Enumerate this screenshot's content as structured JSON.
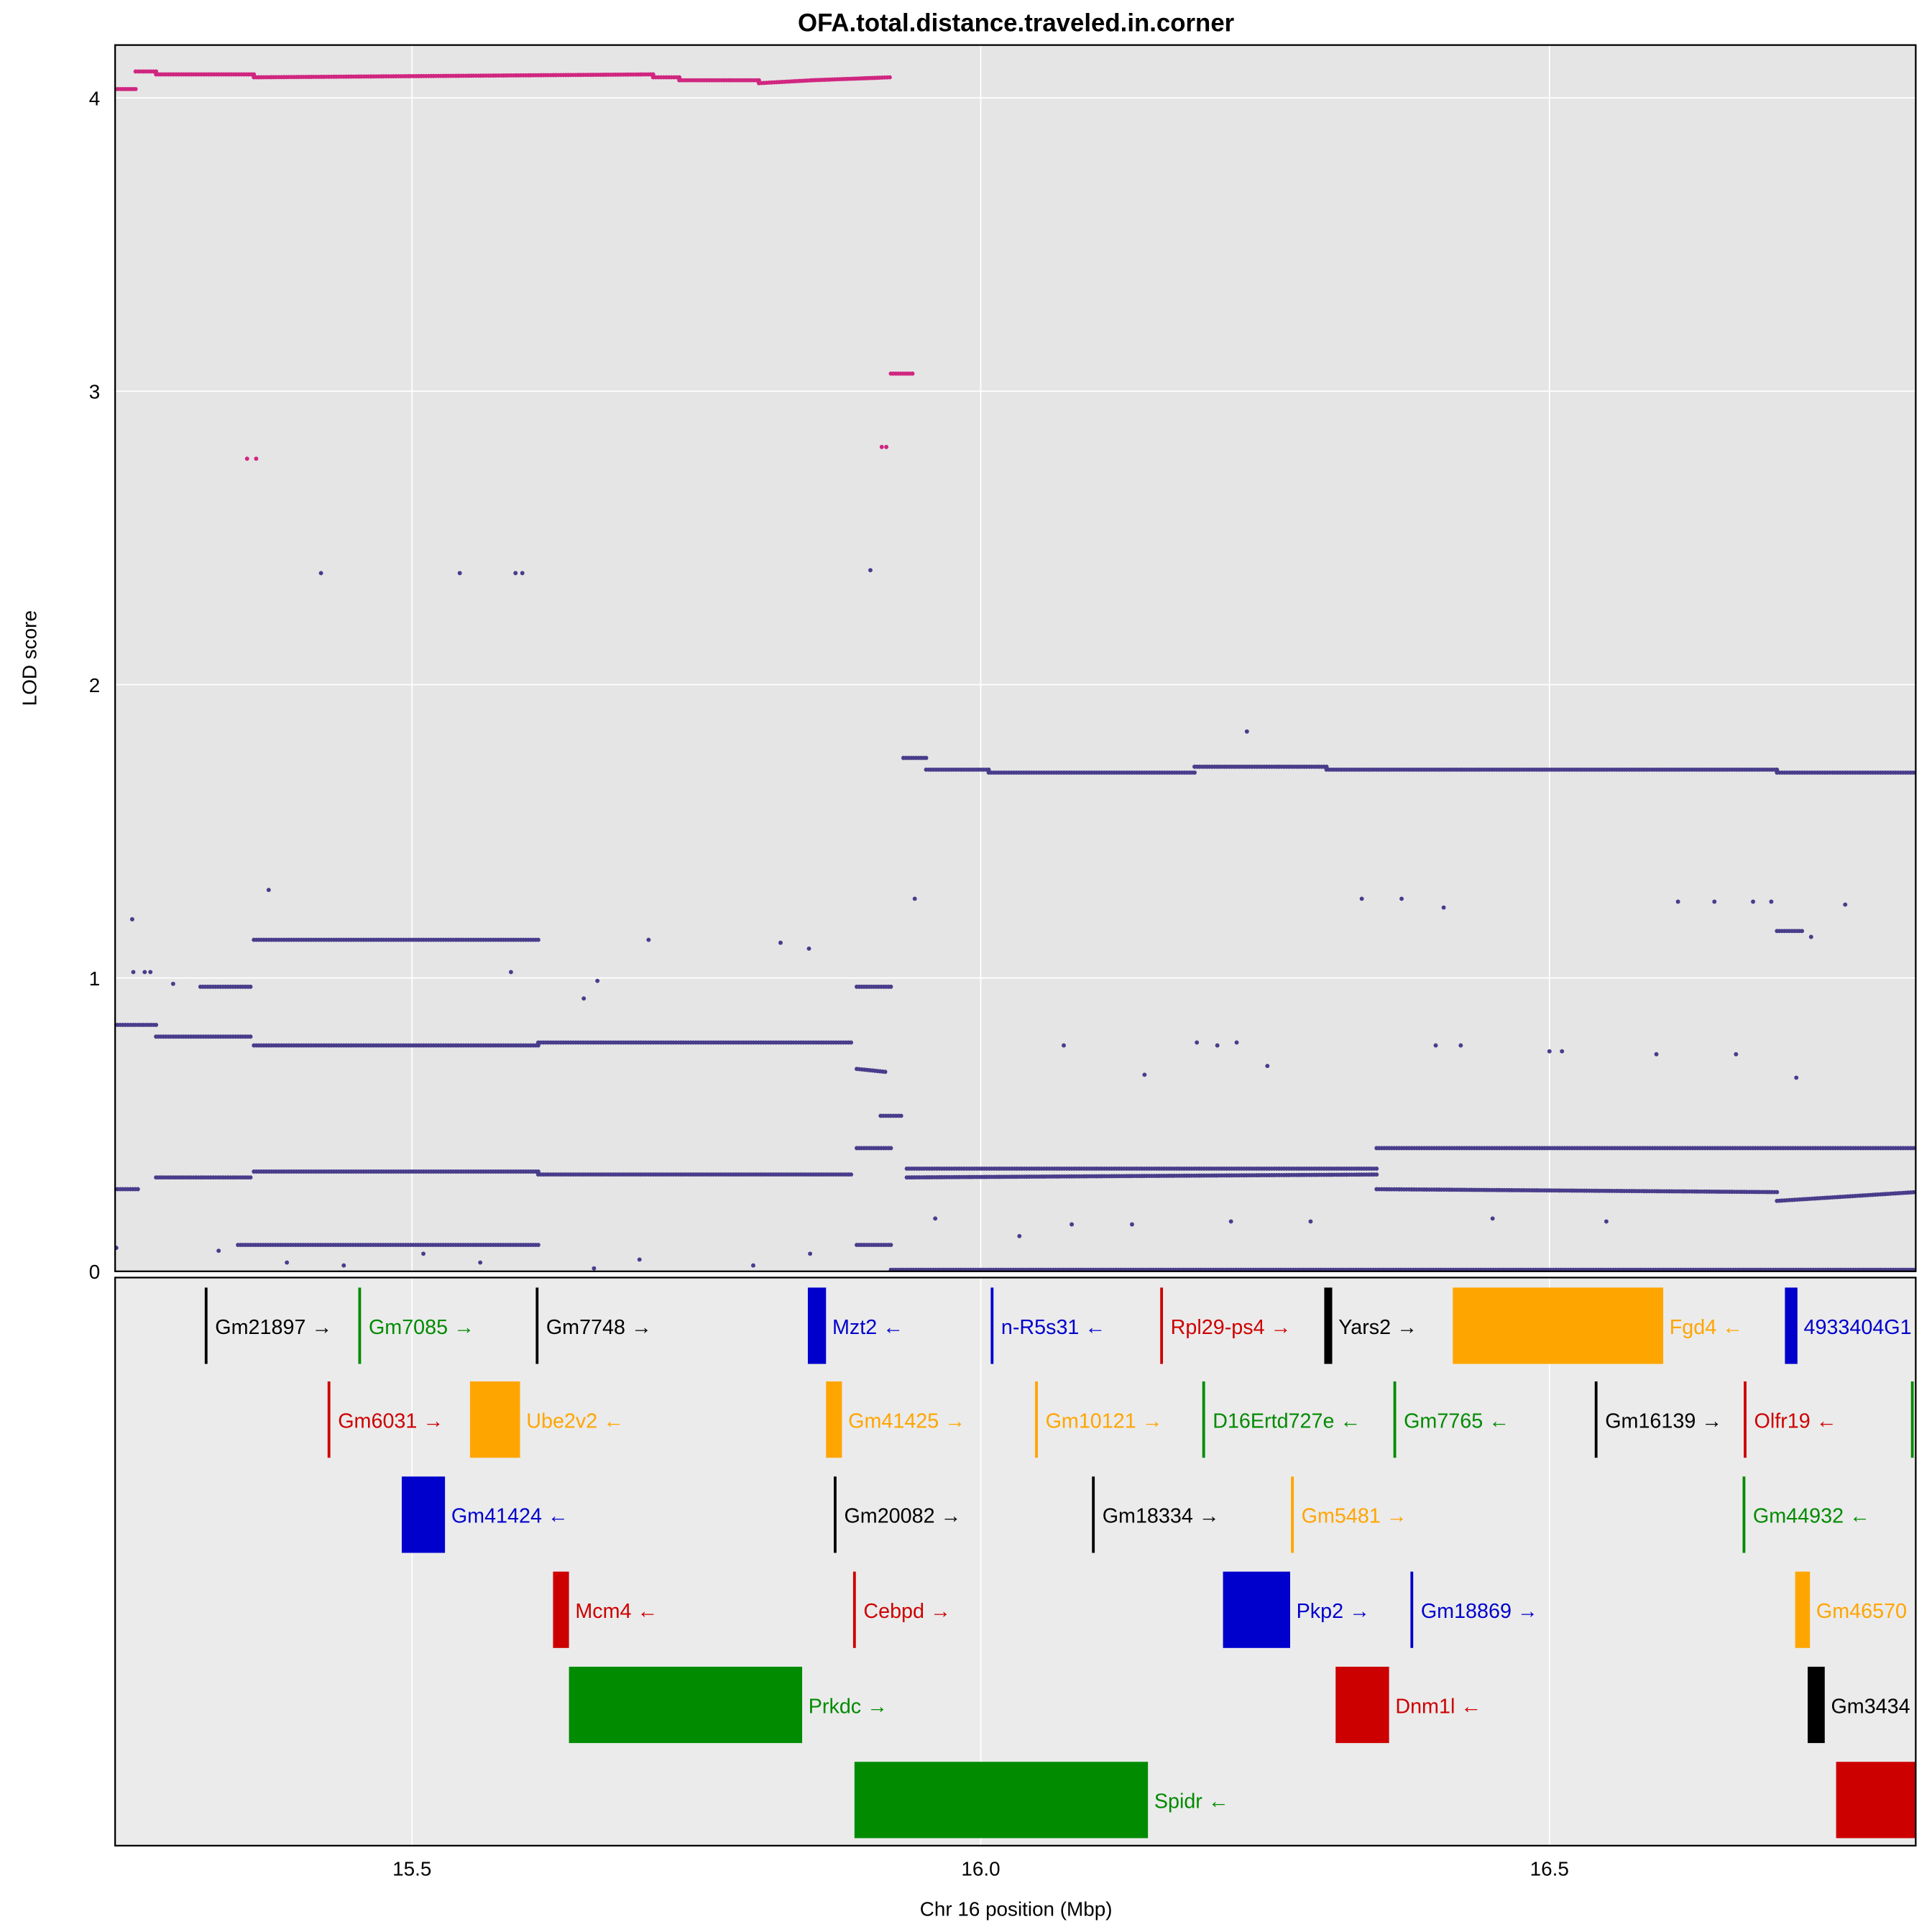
{
  "chart_data": {
    "type": "scatter",
    "title": "OFA.total.distance.traveled.in.corner",
    "xlabel": "Chr 16 position (Mbp)",
    "ylabel": "LOD score",
    "xlim": [
      15.239,
      16.822
    ],
    "ylim": [
      0,
      4.18
    ],
    "grid": true,
    "x_ticks": [
      {
        "value": 15.5,
        "label": "15.5"
      },
      {
        "value": 16.0,
        "label": "16.0"
      },
      {
        "value": 16.5,
        "label": "16.5"
      }
    ],
    "y_ticks": [
      {
        "value": 0,
        "label": "0"
      },
      {
        "value": 1,
        "label": "1"
      },
      {
        "value": 2,
        "label": "2"
      },
      {
        "value": 3,
        "label": "3"
      },
      {
        "value": 4,
        "label": "4"
      }
    ],
    "series": [
      {
        "name": "top-snps",
        "color": "#D02680",
        "segments": [
          [
            15.239,
            15.257,
            4.03,
            4.03
          ],
          [
            15.257,
            15.275,
            4.09,
            4.09
          ],
          [
            15.275,
            15.361,
            4.08,
            4.08
          ],
          [
            15.361,
            15.712,
            4.07,
            4.08
          ],
          [
            15.712,
            15.735,
            4.07,
            4.07
          ],
          [
            15.735,
            15.805,
            4.06,
            4.06
          ],
          [
            15.805,
            15.852,
            4.05,
            4.06
          ],
          [
            15.852,
            15.92,
            4.06,
            4.07
          ],
          [
            15.921,
            15.94,
            3.06,
            3.06
          ]
        ],
        "points": [
          [
            15.355,
            2.77
          ],
          [
            15.363,
            2.77
          ],
          [
            15.913,
            2.81
          ],
          [
            15.917,
            2.81
          ]
        ]
      },
      {
        "name": "other-snps",
        "color": "#483D8B",
        "segments": [
          [
            15.239,
            15.275,
            0.84,
            0.84
          ],
          [
            15.275,
            15.358,
            0.8,
            0.8
          ],
          [
            15.361,
            15.611,
            0.77,
            0.77
          ],
          [
            15.611,
            15.886,
            0.78,
            0.78
          ],
          [
            15.314,
            15.358,
            0.97,
            0.97
          ],
          [
            15.361,
            15.611,
            1.13,
            1.13
          ],
          [
            15.891,
            15.921,
            0.97,
            0.97
          ],
          [
            15.891,
            15.916,
            0.69,
            0.68
          ],
          [
            15.912,
            15.93,
            0.53,
            0.53
          ],
          [
            15.239,
            15.259,
            0.28,
            0.28
          ],
          [
            15.275,
            15.358,
            0.32,
            0.32
          ],
          [
            15.361,
            15.611,
            0.34,
            0.34
          ],
          [
            15.611,
            15.886,
            0.33,
            0.33
          ],
          [
            15.891,
            15.921,
            0.42,
            0.42
          ],
          [
            15.935,
            16.348,
            0.35,
            0.35
          ],
          [
            15.935,
            16.348,
            0.32,
            0.33
          ],
          [
            16.348,
            16.822,
            0.42,
            0.42
          ],
          [
            16.348,
            16.7,
            0.28,
            0.27
          ],
          [
            16.7,
            16.822,
            0.24,
            0.27
          ],
          [
            15.347,
            15.611,
            0.09,
            0.09
          ],
          [
            15.891,
            15.921,
            0.09,
            0.09
          ],
          [
            15.932,
            15.952,
            1.75,
            1.75
          ],
          [
            15.952,
            16.007,
            1.71,
            1.71
          ],
          [
            16.007,
            16.188,
            1.7,
            1.7
          ],
          [
            16.188,
            16.304,
            1.72,
            1.72
          ],
          [
            16.304,
            16.7,
            1.71,
            1.71
          ],
          [
            16.7,
            16.822,
            1.7,
            1.7
          ],
          [
            15.921,
            16.822,
            0.005,
            0.005
          ],
          [
            16.7,
            16.722,
            1.16,
            1.16
          ]
        ],
        "points": [
          [
            15.254,
            1.2
          ],
          [
            15.255,
            1.02
          ],
          [
            15.265,
            1.02
          ],
          [
            15.27,
            1.02
          ],
          [
            15.29,
            0.98
          ],
          [
            15.374,
            1.3
          ],
          [
            15.42,
            2.38
          ],
          [
            15.542,
            2.38
          ],
          [
            15.591,
            2.38
          ],
          [
            15.597,
            2.38
          ],
          [
            15.587,
            1.02
          ],
          [
            15.651,
            0.93
          ],
          [
            15.663,
            0.99
          ],
          [
            15.708,
            1.13
          ],
          [
            15.824,
            1.12
          ],
          [
            15.849,
            1.1
          ],
          [
            15.903,
            2.39
          ],
          [
            15.942,
            1.27
          ],
          [
            16.234,
            1.84
          ],
          [
            16.073,
            0.77
          ],
          [
            16.208,
            0.77
          ],
          [
            16.19,
            0.78
          ],
          [
            16.225,
            0.78
          ],
          [
            16.144,
            0.67
          ],
          [
            16.252,
            0.7
          ],
          [
            16.335,
            1.27
          ],
          [
            16.37,
            1.27
          ],
          [
            16.407,
            1.24
          ],
          [
            16.4,
            0.77
          ],
          [
            16.422,
            0.77
          ],
          [
            16.5,
            0.75
          ],
          [
            16.511,
            0.75
          ],
          [
            16.594,
            0.74
          ],
          [
            16.613,
            1.26
          ],
          [
            16.645,
            1.26
          ],
          [
            16.664,
            0.74
          ],
          [
            16.679,
            1.26
          ],
          [
            16.695,
            1.26
          ],
          [
            16.717,
            0.66
          ],
          [
            16.76,
            1.25
          ],
          [
            16.73,
            1.14
          ],
          [
            16.08,
            0.16
          ],
          [
            16.133,
            0.16
          ],
          [
            16.034,
            0.12
          ],
          [
            16.22,
            0.17
          ],
          [
            16.29,
            0.17
          ],
          [
            16.45,
            0.18
          ],
          [
            16.55,
            0.17
          ],
          [
            15.24,
            0.08
          ],
          [
            15.33,
            0.07
          ],
          [
            15.39,
            0.03
          ],
          [
            15.44,
            0.02
          ],
          [
            15.51,
            0.06
          ],
          [
            15.56,
            0.03
          ],
          [
            15.66,
            0.01
          ],
          [
            15.7,
            0.04
          ],
          [
            15.8,
            0.02
          ],
          [
            15.85,
            0.06
          ],
          [
            15.96,
            0.18
          ]
        ]
      }
    ],
    "genes": [
      {
        "row": 1,
        "start": 15.319,
        "end": 15.319,
        "color": "#000000",
        "label": "Gm21897 →"
      },
      {
        "row": 1,
        "start": 15.454,
        "end": 15.454,
        "color": "#008B00",
        "label": "Gm7085 →"
      },
      {
        "row": 1,
        "start": 15.61,
        "end": 15.61,
        "color": "#000000",
        "label": "Gm7748 →"
      },
      {
        "row": 1,
        "start": 15.848,
        "end": 15.864,
        "color": "#0000CD",
        "label": "Mzt2 ←"
      },
      {
        "row": 1,
        "start": 16.01,
        "end": 16.01,
        "color": "#0000CD",
        "label": "n-R5s31 ←"
      },
      {
        "row": 1,
        "start": 16.159,
        "end": 16.159,
        "color": "#CD0000",
        "label": "Rpl29-ps4 →"
      },
      {
        "row": 1,
        "start": 16.302,
        "end": 16.309,
        "color": "#000000",
        "label": "Yars2 →"
      },
      {
        "row": 1,
        "start": 16.415,
        "end": 16.6,
        "color": "#FFA500",
        "label": "Fgd4 ←"
      },
      {
        "row": 1,
        "start": 16.707,
        "end": 16.718,
        "color": "#0000CD",
        "label": "4933404G1"
      },
      {
        "row": 2,
        "start": 15.427,
        "end": 15.427,
        "color": "#CD0000",
        "label": "Gm6031 →"
      },
      {
        "row": 2,
        "start": 15.551,
        "end": 15.595,
        "color": "#FFA500",
        "label": "Ube2v2 ←"
      },
      {
        "row": 2,
        "start": 15.864,
        "end": 15.878,
        "color": "#FFA500",
        "label": "Gm41425 →"
      },
      {
        "row": 2,
        "start": 16.049,
        "end": 16.049,
        "color": "#FFA500",
        "label": "Gm10121 →"
      },
      {
        "row": 2,
        "start": 16.196,
        "end": 16.196,
        "color": "#008B00",
        "label": "D16Ertd727e ←"
      },
      {
        "row": 2,
        "start": 16.364,
        "end": 16.364,
        "color": "#008B00",
        "label": "Gm7765 ←"
      },
      {
        "row": 2,
        "start": 16.541,
        "end": 16.541,
        "color": "#000000",
        "label": "Gm16139 →"
      },
      {
        "row": 2,
        "start": 16.672,
        "end": 16.672,
        "color": "#CD0000",
        "label": "Olfr19 ←"
      },
      {
        "row": 2,
        "start": 16.819,
        "end": 16.819,
        "color": "#008B00",
        "label": ""
      },
      {
        "row": 3,
        "start": 15.491,
        "end": 15.529,
        "color": "#0000CD",
        "label": "Gm41424 ←"
      },
      {
        "row": 3,
        "start": 15.872,
        "end": 15.872,
        "color": "#000000",
        "label": "Gm20082 →"
      },
      {
        "row": 3,
        "start": 16.099,
        "end": 16.099,
        "color": "#000000",
        "label": "Gm18334 →"
      },
      {
        "row": 3,
        "start": 16.274,
        "end": 16.274,
        "color": "#FFA500",
        "label": "Gm5481 →"
      },
      {
        "row": 3,
        "start": 16.671,
        "end": 16.671,
        "color": "#008B00",
        "label": "Gm44932 ←"
      },
      {
        "row": 4,
        "start": 15.624,
        "end": 15.638,
        "color": "#CD0000",
        "label": "Mcm4 ←"
      },
      {
        "row": 4,
        "start": 15.889,
        "end": 15.889,
        "color": "#CD0000",
        "label": "Cebpd →"
      },
      {
        "row": 4,
        "start": 16.213,
        "end": 16.272,
        "color": "#0000CD",
        "label": "Pkp2 →"
      },
      {
        "row": 4,
        "start": 16.379,
        "end": 16.379,
        "color": "#0000CD",
        "label": "Gm18869 →"
      },
      {
        "row": 4,
        "start": 16.716,
        "end": 16.729,
        "color": "#FFA500",
        "label": "Gm46570"
      },
      {
        "row": 5,
        "start": 15.638,
        "end": 15.843,
        "color": "#008B00",
        "label": "Prkdc →"
      },
      {
        "row": 5,
        "start": 16.312,
        "end": 16.359,
        "color": "#CD0000",
        "label": "Dnm1l ←"
      },
      {
        "row": 5,
        "start": 16.727,
        "end": 16.742,
        "color": "#000000",
        "label": "Gm3434"
      },
      {
        "row": 6,
        "start": 15.889,
        "end": 16.147,
        "color": "#008B00",
        "label": "Spidr ←"
      },
      {
        "row": 6,
        "start": 16.752,
        "end": 16.85,
        "color": "#CD0000",
        "label": ""
      }
    ]
  }
}
